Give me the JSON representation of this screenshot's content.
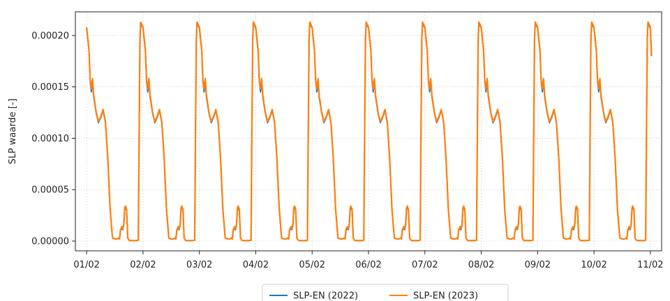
{
  "chart_data": {
    "type": "line",
    "title": "",
    "xlabel": "",
    "ylabel": "SLP waarde [-]",
    "xlim": [
      "01/02 00:00",
      "11/02 00:00"
    ],
    "ylim": [
      -9.5e-06,
      0.000223
    ],
    "grid": true,
    "legend_position": "bottom-center",
    "x_ticks": [
      "01/02",
      "02/02",
      "03/02",
      "04/02",
      "05/02",
      "06/02",
      "07/02",
      "08/02",
      "09/02",
      "10/02",
      "11/02"
    ],
    "y_ticks": [
      "0.00000",
      "0.00005",
      "0.00010",
      "0.00015",
      "0.00020"
    ],
    "y_tick_values": [
      0,
      5e-05,
      0.0001,
      0.00015,
      0.0002
    ],
    "colors": {
      "series_2022": "#1f77b4",
      "series_2023": "#ff7f0e",
      "grid": "#d9d9d9"
    },
    "daily_profile_hours": [
      0,
      1,
      1.5,
      2,
      2.5,
      3,
      4,
      5,
      6,
      7,
      8,
      9,
      10,
      11,
      12,
      12.5,
      13,
      13.6,
      14,
      14.4,
      15,
      15.4,
      15.8,
      16.2,
      16.5,
      17,
      17.5,
      18,
      18.5,
      19,
      20,
      21,
      22,
      22.3,
      22.7,
      23
    ],
    "series": [
      {
        "name": "SLP-EN (2022)",
        "color": "#1f77b4",
        "daily_profile": [
          0.000207,
          0.000185,
          0.000155,
          0.000145,
          0.000155,
          0.00014,
          0.000125,
          0.000115,
          0.00012,
          0.000127,
          0.000115,
          8e-05,
          3e-05,
          3e-06,
          2e-06,
          2e-06,
          2e-06,
          3e-06,
          2e-06,
          1e-05,
          1.3e-05,
          1.1e-05,
          1.5e-05,
          3e-05,
          3.3e-05,
          3e-05,
          3e-06,
          1e-06,
          5e-07,
          5e-07,
          5e-07,
          5e-07,
          8e-07,
          9e-05,
          0.000195,
          0.000212
        ]
      },
      {
        "name": "SLP-EN (2023)",
        "color": "#ff7f0e",
        "daily_profile": [
          0.000208,
          0.000186,
          0.000157,
          0.000148,
          0.000158,
          0.000142,
          0.000126,
          0.000116,
          0.000121,
          0.000128,
          0.000116,
          8.1e-05,
          3.1e-05,
          3e-06,
          2e-06,
          2e-06,
          2e-06,
          3e-06,
          2e-06,
          1.1e-05,
          1.4e-05,
          1.2e-05,
          1.6e-05,
          3.2e-05,
          3.4e-05,
          3.1e-05,
          3e-06,
          1e-06,
          5e-07,
          5e-07,
          5e-07,
          5e-07,
          8e-07,
          9.2e-05,
          0.000197,
          0.000213
        ]
      }
    ]
  }
}
